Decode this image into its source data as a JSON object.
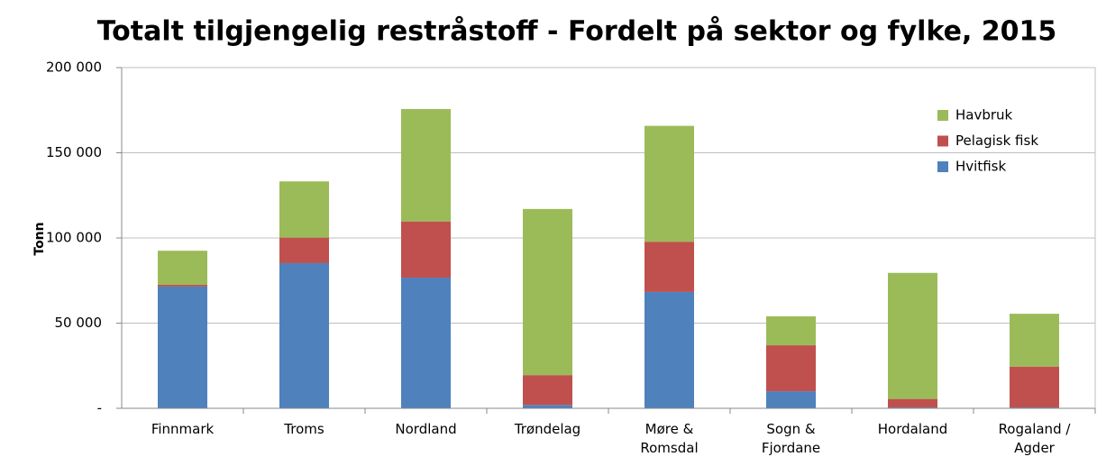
{
  "chart_data": {
    "type": "stacked_bar",
    "title": "Totalt tilgjengelig restråstoff - Fordelt på sektor og fylke, 2015",
    "y_label": "Tonn",
    "categories": [
      "Finnmark",
      "Troms",
      "Nordland",
      "Trøndelag",
      "Møre & Romsdal",
      "Sogn & Fjordane",
      "Hordaland",
      "Rogaland / Agder"
    ],
    "series": [
      {
        "name": "Hvitfisk",
        "color": "#4f81bd",
        "values": [
          71500,
          85200,
          76700,
          2000,
          68300,
          10000,
          500,
          500
        ]
      },
      {
        "name": "Pelagisk fisk",
        "color": "#c0504d",
        "values": [
          1000,
          15000,
          33000,
          17500,
          29500,
          27000,
          5000,
          24000
        ]
      },
      {
        "name": "Havbruk",
        "color": "#9bbb59",
        "values": [
          20000,
          33000,
          66000,
          97500,
          68000,
          17000,
          74000,
          31000
        ]
      }
    ],
    "ylim": [
      0,
      200000
    ],
    "yticks": [
      {
        "value": 0,
        "label": "-"
      },
      {
        "value": 50000,
        "label": "50 000"
      },
      {
        "value": 100000,
        "label": "100 000"
      },
      {
        "value": 150000,
        "label": "150 000"
      },
      {
        "value": 200000,
        "label": "200 000"
      }
    ],
    "grid": true,
    "legend": "upper right"
  }
}
